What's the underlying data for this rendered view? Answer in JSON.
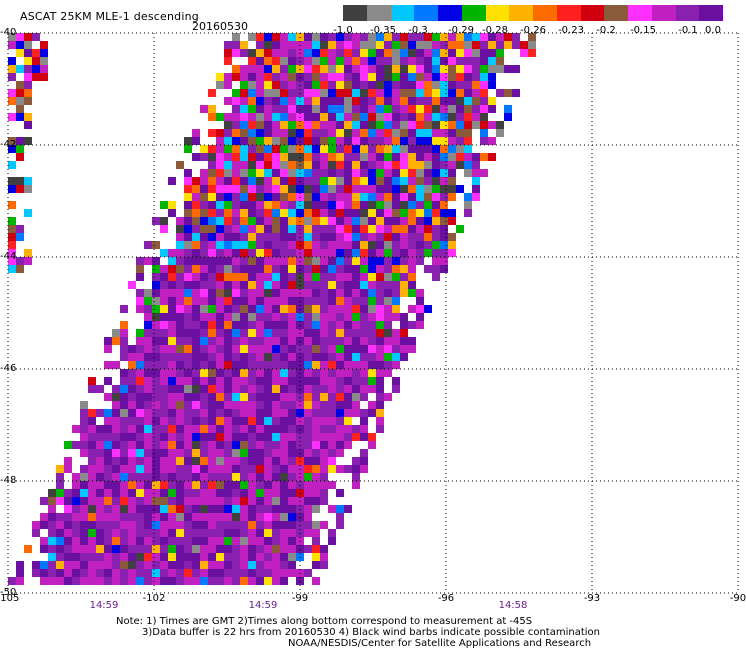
{
  "title": "ASCAT 25KM MLE-1 descending",
  "date": "20160530",
  "colorbar": {
    "colors": [
      "#404040",
      "#8a8a8a",
      "#00c8ff",
      "#0078ff",
      "#0000e6",
      "#00b400",
      "#ffe000",
      "#ffb000",
      "#ff6a00",
      "#ff2020",
      "#d00010",
      "#8a5a3a",
      "#ff30ff",
      "#c020c0",
      "#8a20b0",
      "#6a10a0"
    ],
    "labels": [
      "-1.0",
      "-0.35",
      "-0.3",
      "-0.29",
      "-0.28",
      "-0.26",
      "-0.23",
      "-0.2",
      "-0.15",
      "-0.1",
      "0.0"
    ]
  },
  "chart_data": {
    "type": "heatmap",
    "x_ticks": [
      "-105",
      "-102",
      "-99",
      "-96",
      "-93",
      "-90"
    ],
    "y_ticks": [
      "-40",
      "-42",
      "-44",
      "-46",
      "-48",
      "-50"
    ],
    "xlim": [
      -105,
      -90
    ],
    "ylim": [
      -50,
      -40
    ],
    "grid": true
  },
  "times": [
    "14:59",
    "14:59",
    "14:58"
  ],
  "notes": [
    "Note: 1) Times are GMT 2)Times along bottom correspond to measurement at -45S",
    "3)Data buffer is 22 hrs from 20160530 4) Black wind barbs indicate possible contamination",
    "NOAA/NESDIS/Center for Satellite Applications and Research"
  ]
}
